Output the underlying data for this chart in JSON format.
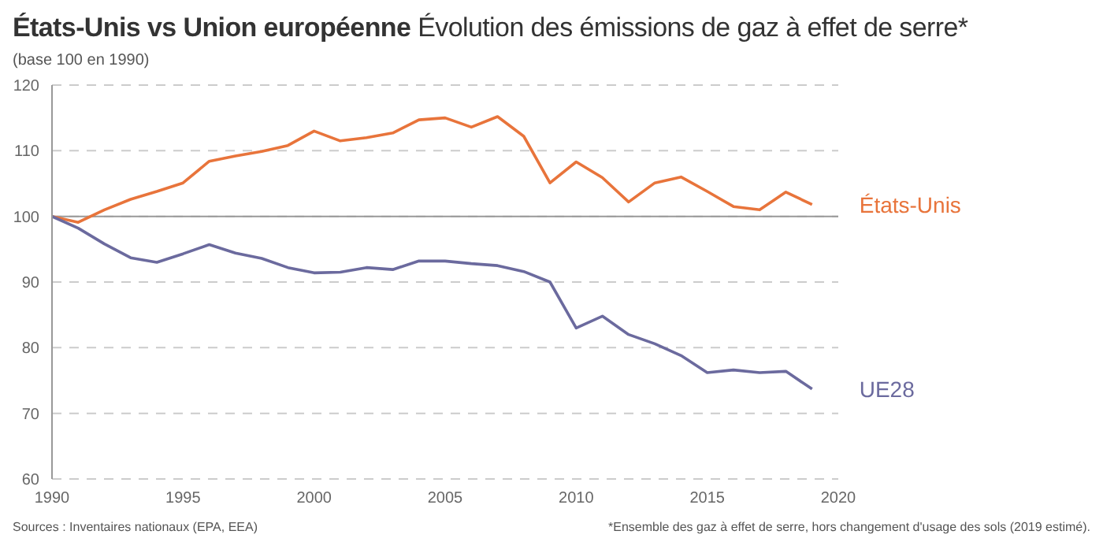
{
  "chart_data": {
    "type": "line",
    "title": "États-Unis vs Union européenne",
    "subtitle": "Évolution des émissions de gaz à effet de serre*",
    "ylabel": "(base 100 en 1990)",
    "annotations": [
      "Sources : Inventaires nationaux (EPA, EEA)",
      "*Ensemble des gaz à effet de serre, hors changement d'usage des sols (2019 estimé)."
    ],
    "x": [
      1990,
      1991,
      1992,
      1993,
      1994,
      1995,
      1996,
      1997,
      1998,
      1999,
      2000,
      2001,
      2002,
      2003,
      2004,
      2005,
      2006,
      2007,
      2008,
      2009,
      2010,
      2011,
      2012,
      2013,
      2014,
      2015,
      2016,
      2017,
      2018,
      2019
    ],
    "series": [
      {
        "name": "États-Unis",
        "color": "#e8743b",
        "values": [
          100,
          99.1,
          101,
          102.6,
          103.8,
          105.1,
          108.4,
          109.2,
          109.9,
          110.8,
          113,
          111.5,
          112,
          112.7,
          114.7,
          115,
          113.6,
          115.2,
          112.2,
          105.1,
          108.3,
          105.9,
          102.2,
          105.1,
          106,
          103.8,
          101.5,
          101,
          103.7,
          101.8
        ]
      },
      {
        "name": "UE28",
        "color": "#6b6a9e",
        "values": [
          100,
          98.2,
          95.8,
          93.7,
          93,
          94.3,
          95.7,
          94.4,
          93.6,
          92.2,
          91.4,
          91.5,
          92.2,
          91.9,
          93.2,
          93.2,
          92.8,
          92.5,
          91.6,
          90,
          83,
          84.8,
          82,
          80.6,
          78.8,
          76.2,
          76.6,
          76.2,
          76.4,
          73.7
        ]
      }
    ],
    "xlim": [
      1990,
      2020
    ],
    "xticks": [
      1990,
      1995,
      2000,
      2005,
      2010,
      2015,
      2020
    ],
    "ylim": [
      60,
      120
    ],
    "yticks": [
      60,
      70,
      80,
      90,
      100,
      110,
      120
    ],
    "grid": "y",
    "legend": false,
    "marker": "none",
    "line_style": "solid",
    "ref_lines": [
      {
        "axis": "y",
        "value": 100,
        "color": "#999999"
      }
    ]
  }
}
